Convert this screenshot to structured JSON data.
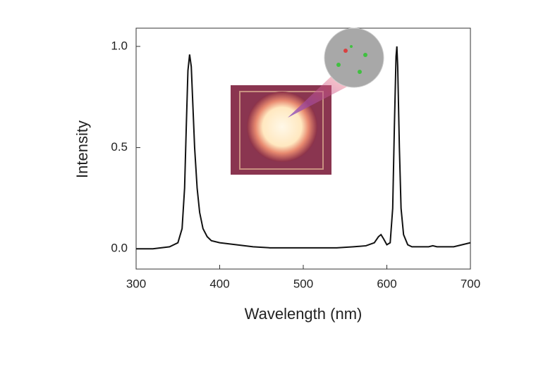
{
  "chart_data": {
    "type": "line",
    "xlabel": "Wavelength (nm)",
    "ylabel": "Intensity",
    "x": [
      300,
      320,
      340,
      350,
      355,
      358,
      360,
      362,
      364,
      366,
      368,
      370,
      373,
      376,
      380,
      385,
      390,
      400,
      420,
      440,
      460,
      480,
      500,
      520,
      540,
      560,
      575,
      585,
      590,
      593,
      596,
      600,
      604,
      607,
      609,
      611,
      612,
      613,
      615,
      617,
      620,
      625,
      630,
      640,
      650,
      655,
      660,
      670,
      680,
      690,
      700
    ],
    "series": [
      {
        "color": "#111111",
        "values": [
          0,
          0,
          0.01,
          0.03,
          0.1,
          0.3,
          0.6,
          0.88,
          0.96,
          0.9,
          0.7,
          0.5,
          0.3,
          0.18,
          0.1,
          0.06,
          0.04,
          0.03,
          0.02,
          0.01,
          0.005,
          0.005,
          0.005,
          0.005,
          0.005,
          0.01,
          0.015,
          0.03,
          0.06,
          0.07,
          0.05,
          0.02,
          0.03,
          0.2,
          0.6,
          0.95,
          1.0,
          0.9,
          0.5,
          0.2,
          0.07,
          0.02,
          0.01,
          0.01,
          0.01,
          0.015,
          0.01,
          0.01,
          0.01,
          0.02,
          0.03
        ]
      }
    ],
    "xlim": [
      300,
      700
    ],
    "xticks": [
      300,
      400,
      500,
      600,
      700
    ],
    "ylim": [
      -0.1,
      1.09
    ],
    "yticks": [
      {
        "value": 0,
        "label": "0.0"
      },
      0.5,
      {
        "value": 1,
        "label": "1.0"
      }
    ]
  }
}
